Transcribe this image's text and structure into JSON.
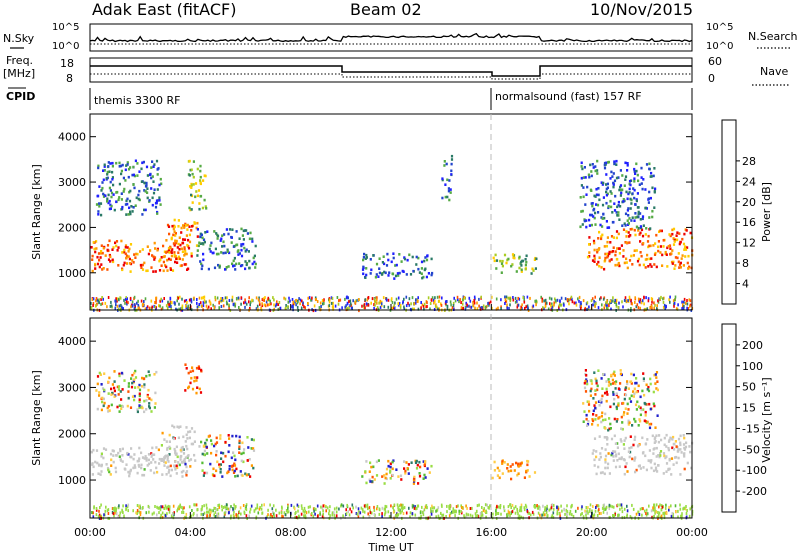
{
  "header": {
    "station": "Adak East (fitACF)",
    "beam": "Beam 02",
    "date": "10/Nov/2015"
  },
  "top_panel": {
    "nsky_label": "N.Sky",
    "nsearch_label": "N.Search",
    "freq_label_1": "Freq.",
    "freq_label_2": "[MHz]",
    "nave_label": "Nave",
    "cpid_label": "CPID",
    "noise_left_ticks": [
      "10^5",
      "10^0"
    ],
    "noise_right_ticks": [
      "10^5",
      "10^0"
    ],
    "freq_ticks": [
      "18",
      "8"
    ],
    "nave_ticks": [
      "60",
      "0"
    ],
    "cpid_segments": [
      {
        "label": "themis 3300 RF",
        "start": "00:00",
        "end": "16:00"
      },
      {
        "label": "normalsound (fast) 157 RF",
        "start": "16:00",
        "end": "24:00"
      }
    ]
  },
  "time_axis": {
    "label": "Time UT",
    "ticks": [
      "00:00",
      "04:00",
      "08:00",
      "12:00",
      "16:00",
      "20:00",
      "00:00"
    ]
  },
  "chart_data": [
    {
      "type": "heatmap",
      "name": "power",
      "ylabel": "Slant Range [km]",
      "xlim": [
        0,
        24
      ],
      "ylim": [
        180,
        4500
      ],
      "yticks": [
        "1000",
        "2000",
        "3000",
        "4000"
      ],
      "colorbar_label": "Power [dB]",
      "colorbar_ticks": [
        "4",
        "8",
        "12",
        "16",
        "20",
        "24",
        "28"
      ],
      "colors": [
        "#2020ff",
        "#2244cc",
        "#2a7a66",
        "#55aa44",
        "#aacc22",
        "#ffcc00",
        "#ff9900",
        "#ff5500",
        "#ee0000"
      ],
      "echo_regions": [
        {
          "t0": 0.0,
          "t1": 3.9,
          "r0": 1050,
          "r1": 1750,
          "level": "high"
        },
        {
          "t0": 2.9,
          "t1": 4.3,
          "r0": 1300,
          "r1": 2200,
          "level": "high"
        },
        {
          "t0": 0.2,
          "t1": 2.8,
          "r0": 2300,
          "r1": 3500,
          "level": "low"
        },
        {
          "t0": 3.9,
          "t1": 4.6,
          "r0": 2400,
          "r1": 3500,
          "level": "mid"
        },
        {
          "t0": 4.2,
          "t1": 6.6,
          "r0": 1100,
          "r1": 2000,
          "level": "low"
        },
        {
          "t0": 10.8,
          "t1": 13.6,
          "r0": 900,
          "r1": 1450,
          "level": "low"
        },
        {
          "t0": 14.0,
          "t1": 14.4,
          "r0": 2600,
          "r1": 3600,
          "level": "low"
        },
        {
          "t0": 16.0,
          "t1": 17.8,
          "r0": 1000,
          "r1": 1450,
          "level": "mid"
        },
        {
          "t0": 19.8,
          "t1": 24.0,
          "r0": 1100,
          "r1": 2000,
          "level": "high"
        },
        {
          "t0": 19.5,
          "t1": 22.5,
          "r0": 2000,
          "r1": 3500,
          "level": "low"
        }
      ]
    },
    {
      "type": "heatmap",
      "name": "velocity",
      "ylabel": "Slant Range [km]",
      "xlim": [
        0,
        24
      ],
      "ylim": [
        180,
        4500
      ],
      "yticks": [
        "1000",
        "2000",
        "3000",
        "4000"
      ],
      "colorbar_label": "Velocity [m s⁻¹]",
      "colorbar_ticks": [
        "200",
        "100",
        "50",
        "15",
        "-15",
        "-50",
        "-100",
        "-200"
      ],
      "colors": [
        "#2020cc",
        "#2a7a66",
        "#55bb33",
        "#99dd44",
        "#c8c8c8",
        "#ffcc44",
        "#ff9900",
        "#ff5500",
        "#ee0000"
      ],
      "echo_regions": [
        {
          "t0": 0.0,
          "t1": 4.0,
          "r0": 1100,
          "r1": 1750,
          "level": "gray"
        },
        {
          "t0": 2.8,
          "t1": 4.2,
          "r0": 1300,
          "r1": 2200,
          "level": "gray"
        },
        {
          "t0": 3.7,
          "t1": 4.4,
          "r0": 2900,
          "r1": 3550,
          "level": "red"
        },
        {
          "t0": 0.2,
          "t1": 2.6,
          "r0": 2500,
          "r1": 3400,
          "level": "mixed"
        },
        {
          "t0": 4.3,
          "t1": 6.5,
          "r0": 1100,
          "r1": 2000,
          "level": "mixed"
        },
        {
          "t0": 10.8,
          "t1": 13.6,
          "r0": 950,
          "r1": 1450,
          "level": "mixed"
        },
        {
          "t0": 16.0,
          "t1": 17.8,
          "r0": 1050,
          "r1": 1450,
          "level": "orange"
        },
        {
          "t0": 20.0,
          "t1": 24.0,
          "r0": 1150,
          "r1": 2000,
          "level": "gray"
        },
        {
          "t0": 19.6,
          "t1": 22.6,
          "r0": 2100,
          "r1": 3400,
          "level": "mixed"
        }
      ]
    }
  ]
}
